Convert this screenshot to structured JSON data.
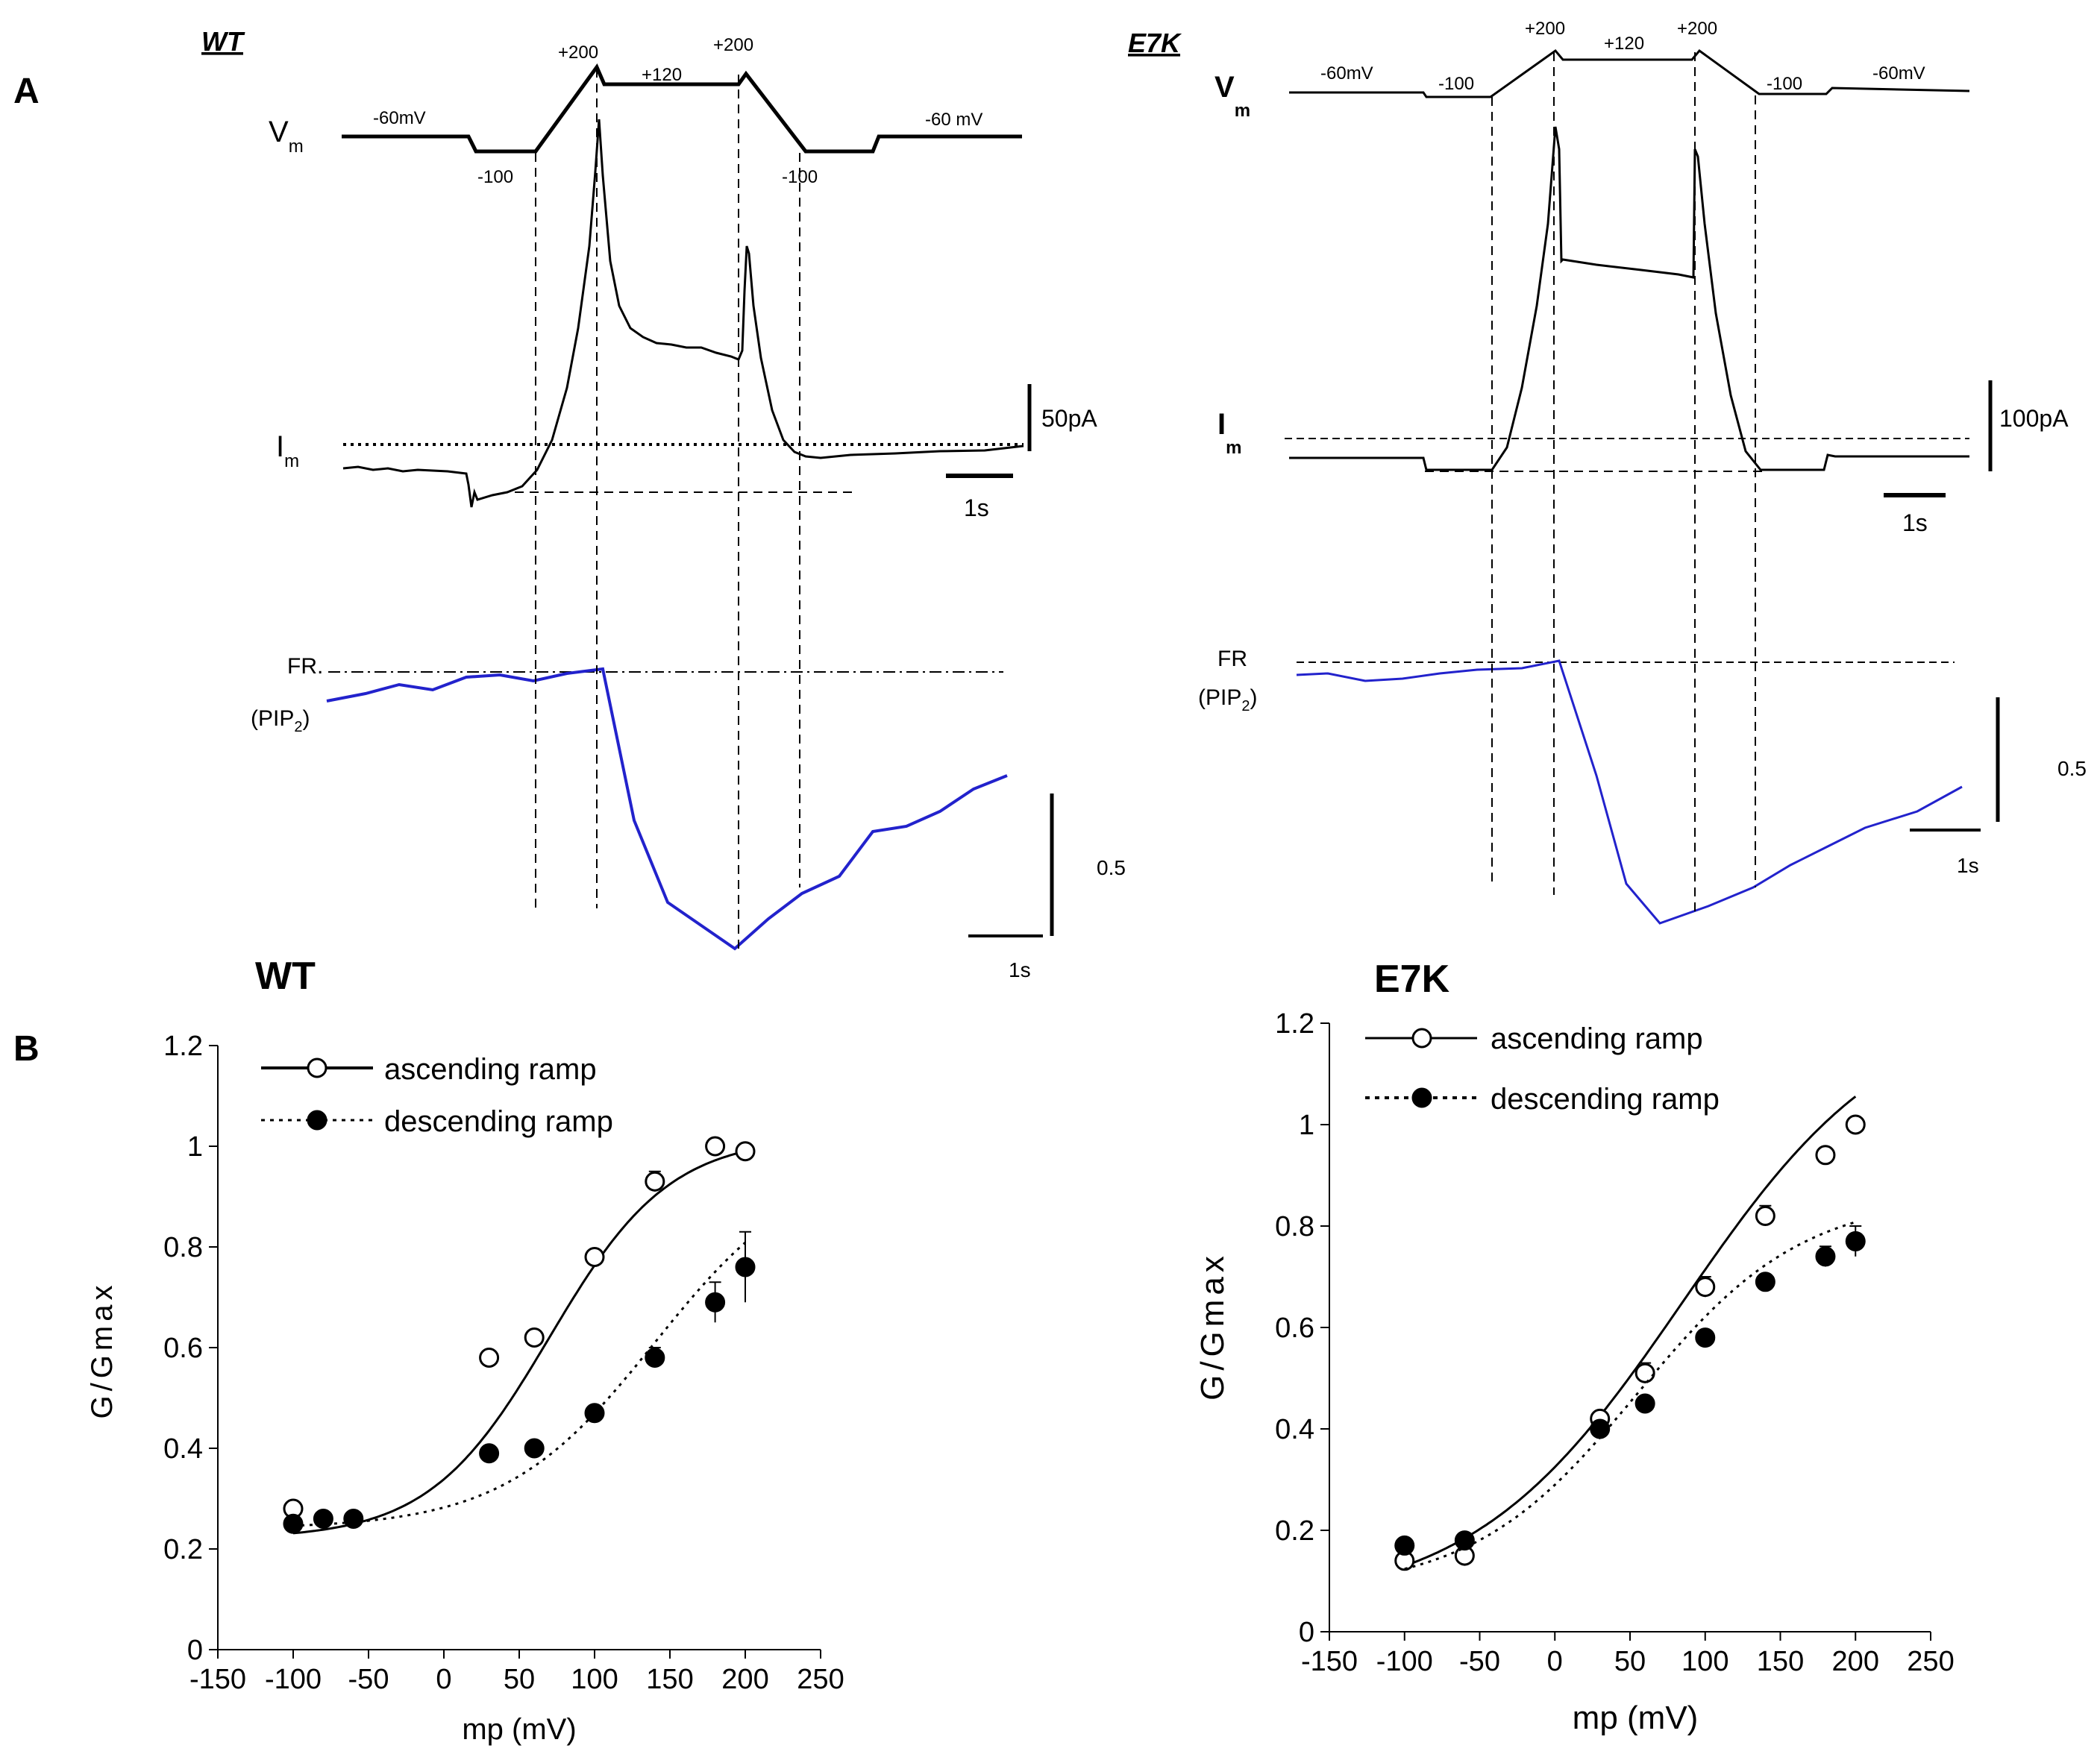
{
  "panel_a": {
    "letter": "A",
    "wt": {
      "label": "WT",
      "vm_label": "V",
      "vm_sub": "m",
      "im_label": "I",
      "im_sub": "m",
      "protocol": [
        "-60mV",
        "-100",
        "+200",
        "+120",
        "+200",
        "-100",
        "-60 mV"
      ],
      "current_scale": "50pA",
      "time_scale": "1s",
      "fr_label": "FR.",
      "pip_label": "(PIP",
      "pip_sub": "2",
      "pip_close": ")",
      "fr_scale": "0.5",
      "fr_time_scale": "1s"
    },
    "e7k": {
      "label": "E7K",
      "vm_label": "V",
      "vm_sub": "m",
      "im_label": "I",
      "im_sub": "m",
      "protocol": [
        "-60mV",
        "-100",
        "+200",
        "+120",
        "+200",
        "-100",
        "-60mV"
      ],
      "current_scale": "100pA",
      "time_scale": "1s",
      "fr_label": "FR",
      "pip_label": "(PIP",
      "pip_sub": "2",
      "pip_close": ")",
      "fr_scale": "0.5",
      "fr_time_scale": "1s"
    }
  },
  "panel_b": {
    "letter": "B"
  },
  "colors": {
    "trace": "#000000",
    "fr_trace": "#2222cc"
  },
  "chart_data": [
    {
      "type": "scatter",
      "title": "WT",
      "xlabel": "mp (mV)",
      "ylabel": "G/Gmax",
      "xlim": [
        -150,
        250
      ],
      "ylim": [
        0,
        1.2
      ],
      "xticks": [
        -150,
        -100,
        -50,
        0,
        50,
        100,
        150,
        200,
        250
      ],
      "yticks": [
        0,
        0.2,
        0.4,
        0.6,
        0.8,
        1,
        1.2
      ],
      "ytick_labels": [
        "0",
        "0.2",
        "0.4",
        "0.6",
        "0.8",
        "1",
        "1.2"
      ],
      "legend_position": "top-left",
      "series": [
        {
          "name": "ascending ramp",
          "marker": "open-circle",
          "line": "solid",
          "x": [
            -100,
            30,
            60,
            100,
            140,
            180,
            200
          ],
          "y": [
            0.28,
            0.58,
            0.62,
            0.78,
            0.93,
            1.0,
            0.99
          ],
          "err": [
            0.01,
            0.01,
            0.01,
            0.01,
            0.02,
            0.01,
            0.01
          ],
          "fit": {
            "bottom": 0.22,
            "top": 1.02,
            "v_half": 70,
            "slope": 40
          }
        },
        {
          "name": "descending ramp",
          "marker": "filled-circle",
          "line": "dotted",
          "x": [
            -100,
            -80,
            -60,
            30,
            60,
            100,
            140,
            180,
            200
          ],
          "y": [
            0.25,
            0.26,
            0.26,
            0.39,
            0.4,
            0.47,
            0.58,
            0.69,
            0.76
          ],
          "err": [
            0.01,
            0.01,
            0.01,
            0.01,
            0.01,
            0.01,
            0.02,
            0.04,
            0.07
          ],
          "fit": {
            "bottom": 0.24,
            "top": 0.98,
            "v_half": 140,
            "slope": 50
          }
        }
      ]
    },
    {
      "type": "scatter",
      "title": "E7K",
      "xlabel": "mp (mV)",
      "ylabel": "G/Gmax",
      "xlim": [
        -150,
        250
      ],
      "ylim": [
        0,
        1.2
      ],
      "xticks": [
        -150,
        -100,
        -50,
        0,
        50,
        100,
        150,
        200,
        250
      ],
      "yticks": [
        0,
        0.2,
        0.4,
        0.6,
        0.8,
        1,
        1.2
      ],
      "ytick_labels": [
        "0",
        "0.2",
        "0.4",
        "0.6",
        "0.8",
        "1",
        "1.2"
      ],
      "legend_position": "top-left",
      "series": [
        {
          "name": "ascending ramp",
          "marker": "open-circle",
          "line": "solid",
          "x": [
            -100,
            -60,
            30,
            60,
            100,
            140,
            180,
            200
          ],
          "y": [
            0.14,
            0.15,
            0.42,
            0.51,
            0.68,
            0.82,
            0.94,
            1.0
          ],
          "err": [
            0.01,
            0.02,
            0.01,
            0.02,
            0.02,
            0.02,
            0.01,
            0.01
          ],
          "fit": {
            "bottom": 0.05,
            "top": 1.25,
            "v_half": 85,
            "slope": 70
          }
        },
        {
          "name": "descending ramp",
          "marker": "filled-circle",
          "line": "dotted",
          "x": [
            -100,
            -60,
            30,
            60,
            100,
            140,
            180,
            200
          ],
          "y": [
            0.17,
            0.18,
            0.4,
            0.45,
            0.58,
            0.69,
            0.74,
            0.77
          ],
          "err": [
            0.01,
            0.01,
            0.01,
            0.01,
            0.01,
            0.01,
            0.02,
            0.03
          ],
          "fit": {
            "bottom": 0.08,
            "top": 0.86,
            "v_half": 55,
            "slope": 55
          }
        }
      ]
    }
  ]
}
